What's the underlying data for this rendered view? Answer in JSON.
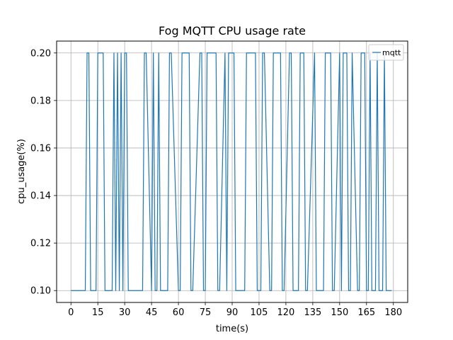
{
  "chart_data": {
    "type": "line",
    "title": "Fog MQTT CPU usage rate",
    "xlabel": "time(s)",
    "ylabel": "cpu_usage(%)",
    "xlim": [
      -8,
      188
    ],
    "ylim": [
      0.095,
      0.205
    ],
    "xticks": [
      0,
      15,
      30,
      45,
      60,
      75,
      90,
      105,
      120,
      135,
      150,
      165,
      180
    ],
    "yticks": [
      0.1,
      0.12,
      0.14,
      0.16,
      0.18,
      0.2
    ],
    "ytick_labels": [
      "0.10",
      "0.12",
      "0.14",
      "0.16",
      "0.18",
      "0.20"
    ],
    "grid": true,
    "legend_position": "top-right",
    "series": [
      {
        "name": "mqtt",
        "color": "#1f77b4",
        "x": [
          0,
          8,
          9,
          10,
          11,
          14,
          15,
          18,
          19,
          23,
          24,
          25,
          26,
          27,
          28,
          29,
          30,
          31,
          32,
          40,
          41,
          42,
          45,
          46,
          47,
          48,
          49,
          50,
          54,
          55,
          56,
          60,
          61,
          62,
          66,
          67,
          68,
          72,
          73,
          74,
          75,
          76,
          81,
          82,
          83,
          86,
          87,
          88,
          91,
          92,
          97,
          98,
          103,
          104,
          106,
          107,
          108,
          111,
          112,
          113,
          117,
          118,
          119,
          122,
          123,
          124,
          127,
          128,
          130,
          131,
          132,
          136,
          137,
          141,
          142,
          145,
          146,
          147,
          150,
          151,
          152,
          154,
          155,
          156,
          157,
          160,
          161,
          162,
          164,
          165,
          166,
          167,
          168,
          170,
          171,
          172,
          174,
          175,
          176,
          178,
          179
        ],
        "y": [
          0.1,
          0.1,
          0.2,
          0.2,
          0.1,
          0.1,
          0.2,
          0.2,
          0.1,
          0.1,
          0.2,
          0.1,
          0.2,
          0.1,
          0.2,
          0.1,
          0.2,
          0.2,
          0.1,
          0.1,
          0.2,
          0.2,
          0.1,
          0.2,
          0.1,
          0.1,
          0.2,
          0.1,
          0.1,
          0.2,
          0.2,
          0.1,
          0.1,
          0.2,
          0.2,
          0.1,
          0.1,
          0.2,
          0.2,
          0.1,
          0.1,
          0.2,
          0.2,
          0.1,
          0.1,
          0.2,
          0.1,
          0.2,
          0.2,
          0.1,
          0.1,
          0.2,
          0.2,
          0.1,
          0.1,
          0.2,
          0.2,
          0.1,
          0.1,
          0.2,
          0.2,
          0.1,
          0.1,
          0.2,
          0.2,
          0.1,
          0.1,
          0.2,
          0.2,
          0.1,
          0.1,
          0.2,
          0.1,
          0.1,
          0.2,
          0.2,
          0.1,
          0.1,
          0.2,
          0.1,
          0.2,
          0.2,
          0.1,
          0.1,
          0.2,
          0.1,
          0.1,
          0.2,
          0.2,
          0.1,
          0.1,
          0.2,
          0.1,
          0.1,
          0.2,
          0.1,
          0.1,
          0.2,
          0.1,
          0.1,
          0.1
        ]
      }
    ]
  }
}
